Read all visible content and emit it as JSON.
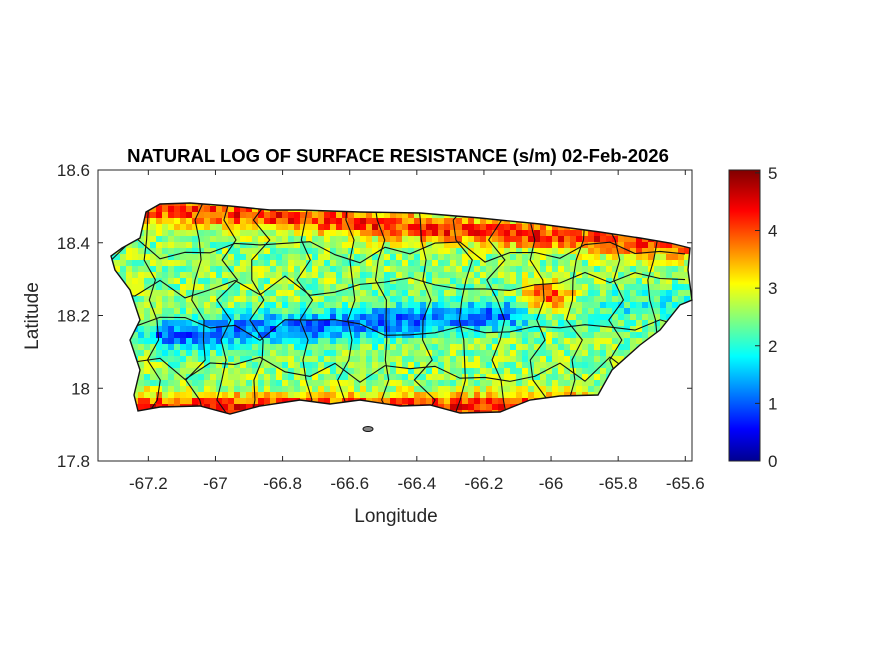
{
  "chart_data": {
    "type": "heatmap",
    "title": "NATURAL LOG OF SURFACE RESISTANCE (s/m) 02-Feb-2026",
    "xlabel": "Longitude",
    "ylabel": "Latitude",
    "xlim": [
      -67.35,
      -65.58
    ],
    "ylim": [
      17.8,
      18.6
    ],
    "xticks": [
      "-67.2",
      "-67",
      "-66.8",
      "-66.6",
      "-66.4",
      "-66.2",
      "-66",
      "-65.8",
      "-65.6"
    ],
    "xtick_values": [
      -67.2,
      -67.0,
      -66.8,
      -66.6,
      -66.4,
      -66.2,
      -66.0,
      -65.8,
      -65.6
    ],
    "yticks": [
      "18.6",
      "18.4",
      "18.2",
      "18"
    ],
    "ytick_values": [
      18.6,
      18.4,
      18.2,
      18.0
    ],
    "extra_ytick": {
      "label": "17.8",
      "value": 17.8
    },
    "colorbar": {
      "colormap": "jet",
      "range": [
        0,
        5.05
      ],
      "ticks": [
        "0",
        "1",
        "2",
        "3",
        "4",
        "5"
      ],
      "tick_values": [
        0,
        1,
        2,
        3,
        4,
        5
      ]
    },
    "description_regions": {
      "north_coast": 4.2,
      "central_mountains": 1.2,
      "south_coast": 4.3,
      "east_interior_peak": 4.8,
      "typical": 2.6
    }
  }
}
